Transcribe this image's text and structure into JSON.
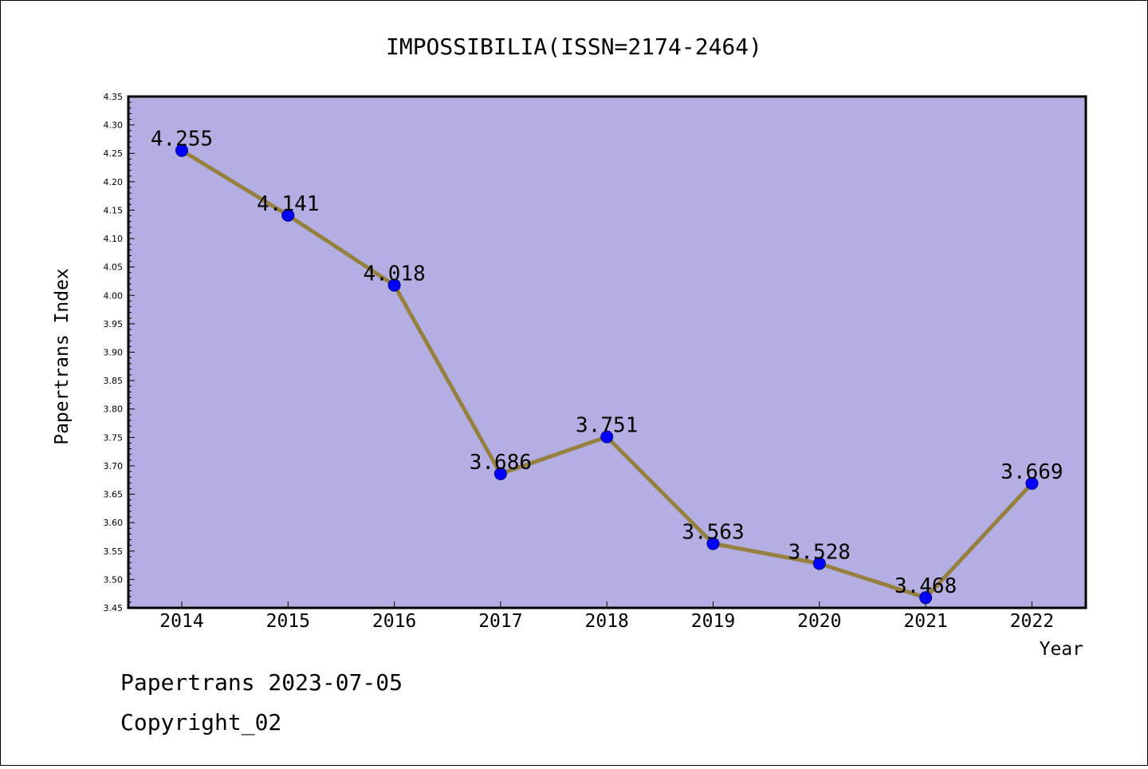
{
  "chart_data": {
    "type": "line",
    "title": "IMPOSSIBILIA(ISSN=2174-2464)",
    "xlabel": "Year",
    "ylabel": "Papertrans Index",
    "categories": [
      "2014",
      "2015",
      "2016",
      "2017",
      "2018",
      "2019",
      "2020",
      "2021",
      "2022"
    ],
    "values": [
      4.255,
      4.141,
      4.018,
      3.686,
      3.751,
      3.563,
      3.528,
      3.468,
      3.669
    ],
    "data_labels": [
      "4.255",
      "4.141",
      "4.018",
      "3.686",
      "3.751",
      "3.563",
      "3.528",
      "3.468",
      "3.669"
    ],
    "ylim": [
      3.45,
      4.35
    ],
    "yticks": [
      "3.45",
      "3.50",
      "3.55",
      "3.60",
      "3.65",
      "3.70",
      "3.75",
      "3.80",
      "3.85",
      "3.90",
      "3.95",
      "4.00",
      "4.05",
      "4.10",
      "4.15",
      "4.20",
      "4.25",
      "4.30",
      "4.35"
    ],
    "grid": false,
    "legend": "none"
  },
  "footer": {
    "line1": "Papertrans 2023-07-05",
    "line2": "Copyright_02"
  },
  "colors": {
    "plot_background": "#b4afe2",
    "line": "#968040",
    "marker": "#0000ff",
    "marker_edge": "#00008b"
  }
}
